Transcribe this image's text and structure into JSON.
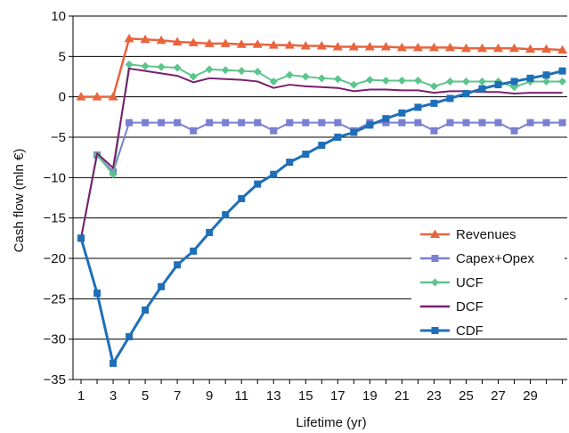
{
  "chart_data": {
    "type": "line",
    "xlabel": "Lifetime (yr)",
    "ylabel": "Cash flow (mln €)",
    "x": [
      1,
      2,
      3,
      4,
      5,
      6,
      7,
      8,
      9,
      10,
      11,
      12,
      13,
      14,
      15,
      16,
      17,
      18,
      19,
      20,
      21,
      22,
      23,
      24,
      25,
      26,
      27,
      28,
      29,
      30,
      31
    ],
    "xlim": [
      0.5,
      31.3
    ],
    "ylim": [
      -35,
      10
    ],
    "x_tick_labels": [
      "1",
      "3",
      "5",
      "7",
      "9",
      "11",
      "13",
      "15",
      "17",
      "19",
      "21",
      "23",
      "25",
      "27",
      "29"
    ],
    "y_tick_labels": [
      "10",
      "5",
      "0",
      "−5",
      "−10",
      "−15",
      "−20",
      "−25",
      "−30",
      "−35"
    ],
    "grid": "horizontal",
    "legend_position": "lower-right",
    "series": [
      {
        "name": "Revenues",
        "color": "#e8643c",
        "marker": "triangle",
        "values": [
          0,
          0,
          0,
          7.2,
          7.1,
          7.0,
          6.8,
          6.7,
          6.6,
          6.6,
          6.5,
          6.5,
          6.4,
          6.4,
          6.3,
          6.3,
          6.2,
          6.2,
          6.2,
          6.2,
          6.1,
          6.1,
          6.1,
          6.1,
          6.0,
          6.0,
          6.0,
          6.0,
          5.9,
          5.9,
          5.8
        ]
      },
      {
        "name": "Capex+Opex",
        "color": "#7b7fd0",
        "marker": "square",
        "values": [
          -17.5,
          -7.2,
          -9.3,
          -3.2,
          -3.2,
          -3.2,
          -3.2,
          -4.2,
          -3.2,
          -3.2,
          -3.2,
          -3.2,
          -4.2,
          -3.2,
          -3.2,
          -3.2,
          -3.2,
          -4.2,
          -3.2,
          -3.2,
          -3.2,
          -3.2,
          -4.2,
          -3.2,
          -3.2,
          -3.2,
          -3.2,
          -4.2,
          -3.2,
          -3.2,
          -3.2
        ]
      },
      {
        "name": "UCF",
        "color": "#5cc48c",
        "marker": "diamond",
        "values": [
          -17.5,
          -7.2,
          -9.6,
          4.0,
          3.8,
          3.7,
          3.6,
          2.5,
          3.4,
          3.3,
          3.2,
          3.1,
          1.9,
          2.7,
          2.5,
          2.3,
          2.2,
          1.5,
          2.1,
          2.0,
          2.0,
          2.0,
          1.3,
          1.9,
          1.9,
          1.9,
          1.9,
          1.2,
          1.9,
          1.9,
          1.9
        ]
      },
      {
        "name": "DCF",
        "color": "#7a1f6e",
        "marker": "none",
        "values": [
          -17.5,
          -7.0,
          -8.8,
          3.5,
          3.2,
          2.9,
          2.6,
          1.8,
          2.3,
          2.2,
          2.1,
          1.9,
          1.1,
          1.5,
          1.3,
          1.2,
          1.1,
          0.7,
          0.9,
          0.9,
          0.8,
          0.8,
          0.5,
          0.7,
          0.7,
          0.6,
          0.6,
          0.4,
          0.5,
          0.5,
          0.5
        ]
      },
      {
        "name": "CDF",
        "color": "#1f6fb8",
        "marker": "square",
        "values": [
          -17.5,
          -24.3,
          -33.0,
          -29.7,
          -26.4,
          -23.5,
          -20.8,
          -19.1,
          -16.8,
          -14.6,
          -12.6,
          -10.8,
          -9.6,
          -8.1,
          -7.1,
          -6.0,
          -5.0,
          -4.4,
          -3.5,
          -2.7,
          -2.0,
          -1.3,
          -0.8,
          -0.2,
          0.4,
          1.0,
          1.5,
          1.9,
          2.3,
          2.7,
          3.2
        ]
      }
    ]
  }
}
